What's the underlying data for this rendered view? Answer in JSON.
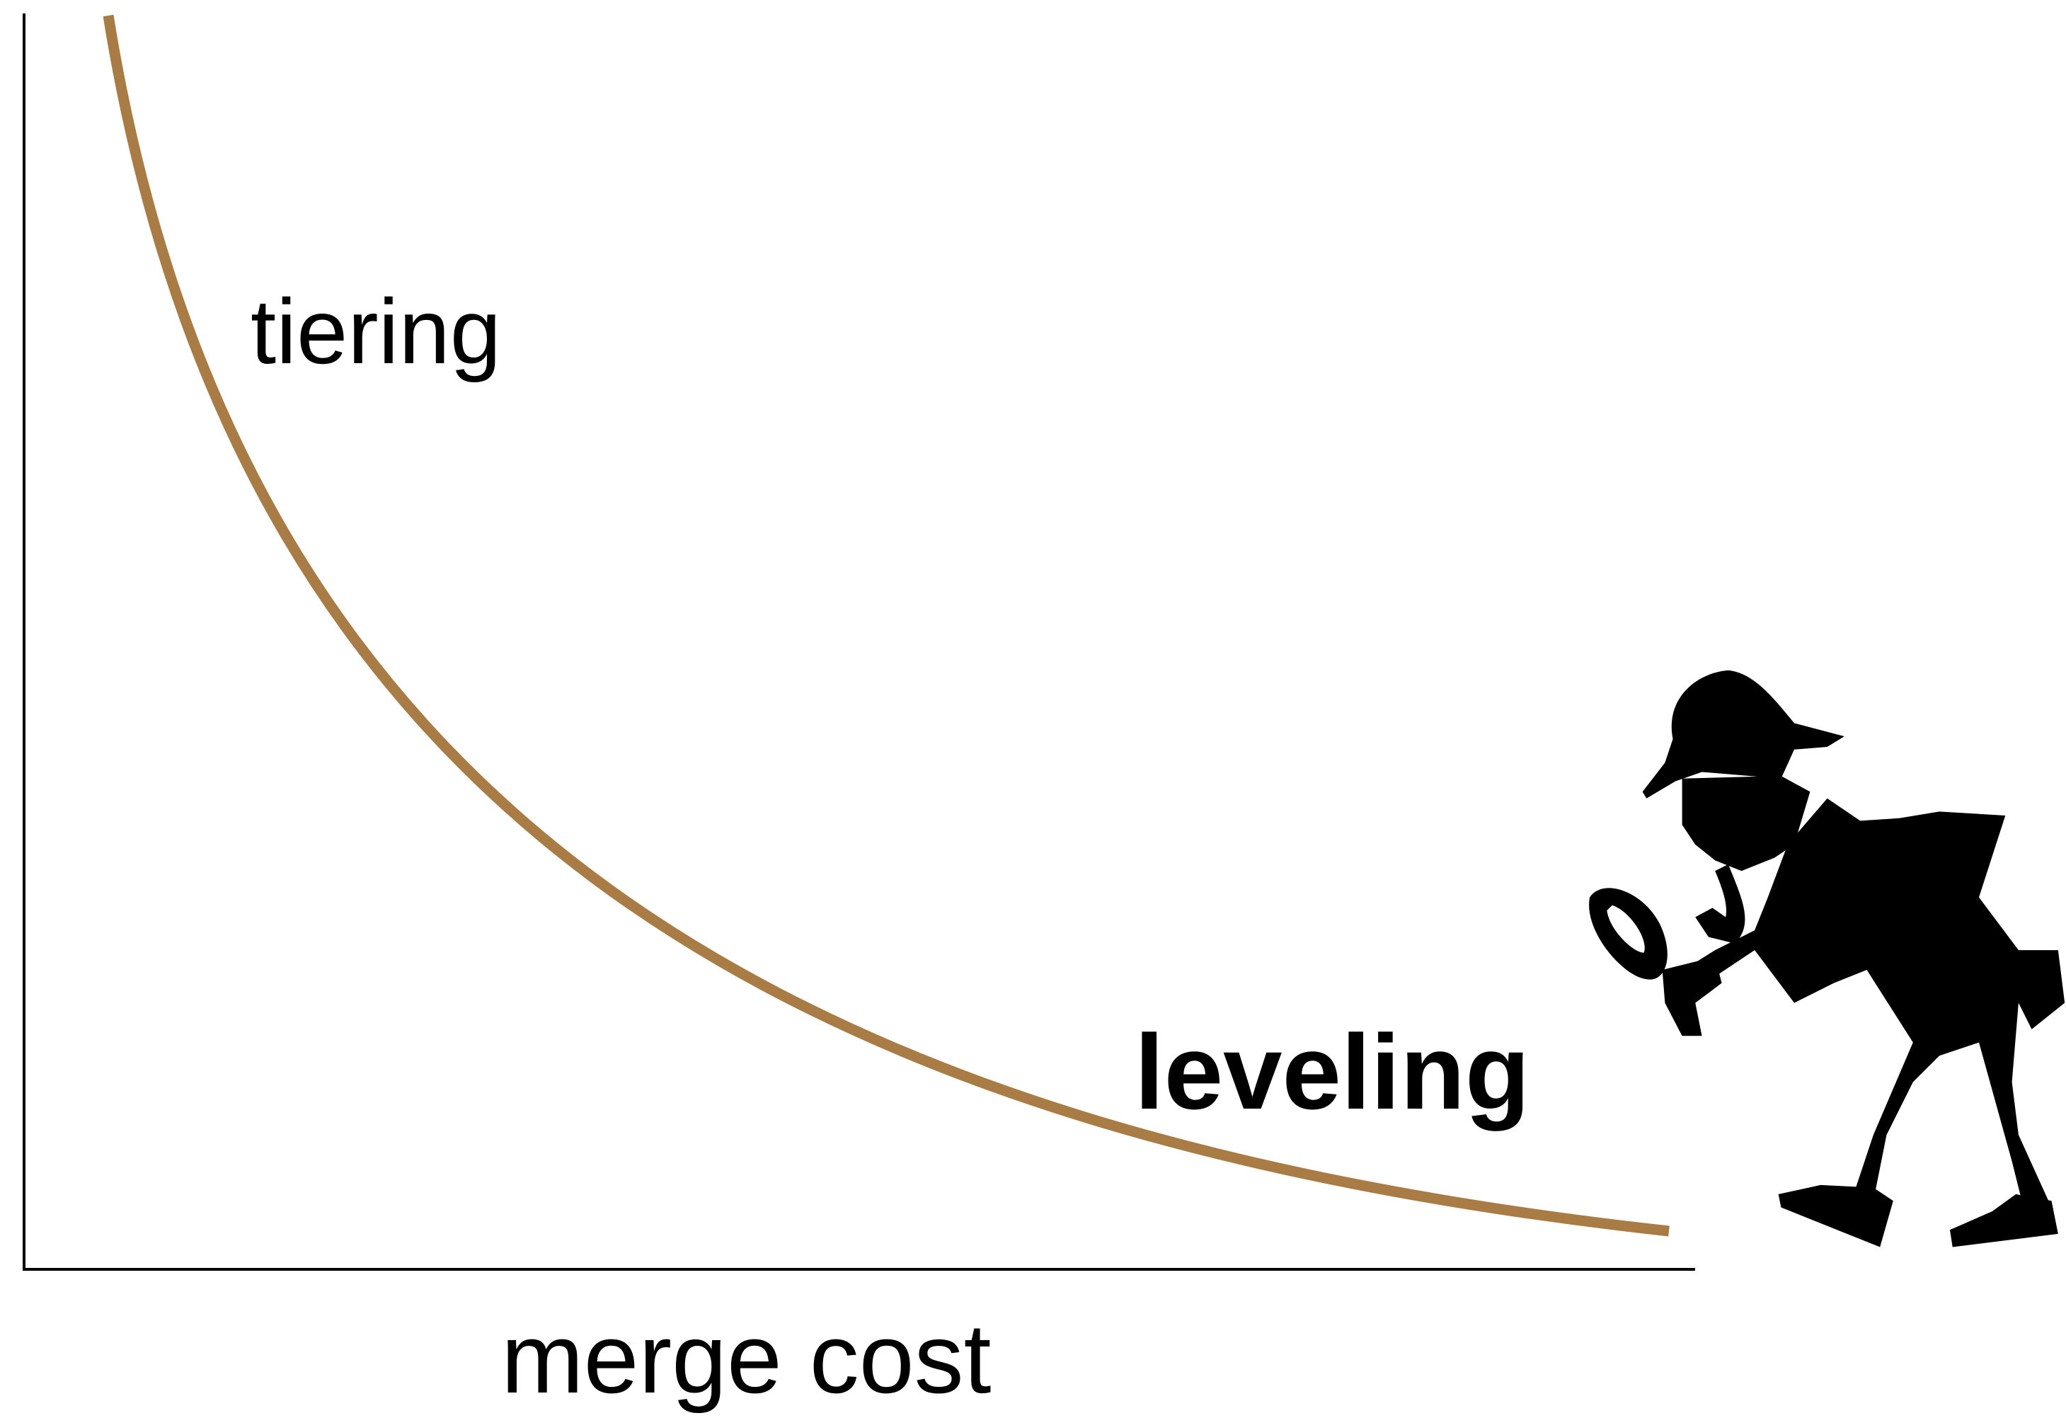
{
  "labels": {
    "tiering": "tiering",
    "leveling": "leveling",
    "x_axis": "merge cost"
  }
}
